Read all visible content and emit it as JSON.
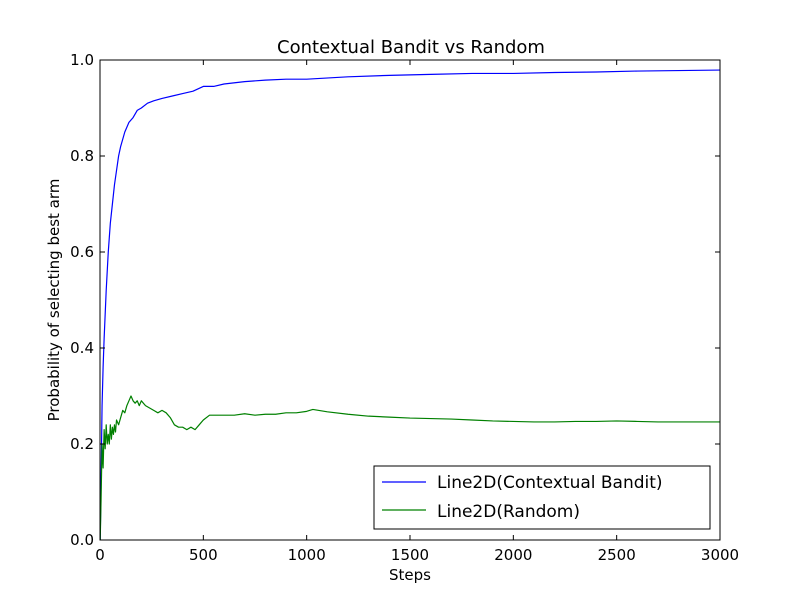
{
  "chart_data": {
    "type": "line",
    "title": "Contextual Bandit vs Random",
    "xlabel": "Steps",
    "ylabel": "Probability of selecting best arm",
    "xlim": [
      0,
      3000
    ],
    "ylim": [
      0.0,
      1.0
    ],
    "grid": false,
    "legend_position": "bottom-right",
    "x_ticks": [
      0,
      500,
      1000,
      1500,
      2000,
      2500,
      3000
    ],
    "x_tick_labels": [
      "0",
      "500",
      "1000",
      "1500",
      "2000",
      "2500",
      "3000"
    ],
    "y_ticks": [
      0.0,
      0.2,
      0.4,
      0.6,
      0.8,
      1.0
    ],
    "y_tick_labels": [
      "0.0",
      "0.2",
      "0.4",
      "0.6",
      "0.8",
      "1.0"
    ],
    "series": [
      {
        "name": "Line2D(Contextual Bandit)",
        "color": "#0000ff",
        "x": [
          1,
          5,
          10,
          15,
          20,
          25,
          30,
          35,
          40,
          45,
          50,
          60,
          70,
          80,
          90,
          100,
          120,
          140,
          160,
          180,
          200,
          230,
          260,
          300,
          350,
          400,
          450,
          500,
          550,
          600,
          700,
          800,
          900,
          1000,
          1200,
          1400,
          1600,
          1800,
          2000,
          2200,
          2400,
          2600,
          2800,
          3000
        ],
        "y": [
          0.0,
          0.12,
          0.28,
          0.36,
          0.42,
          0.47,
          0.52,
          0.56,
          0.6,
          0.63,
          0.66,
          0.7,
          0.74,
          0.77,
          0.8,
          0.82,
          0.85,
          0.87,
          0.88,
          0.895,
          0.9,
          0.91,
          0.915,
          0.92,
          0.925,
          0.93,
          0.935,
          0.945,
          0.945,
          0.95,
          0.955,
          0.958,
          0.96,
          0.96,
          0.965,
          0.968,
          0.97,
          0.972,
          0.972,
          0.974,
          0.975,
          0.977,
          0.978,
          0.979
        ]
      },
      {
        "name": "Line2D(Random)",
        "color": "#008000",
        "x": [
          1,
          5,
          10,
          15,
          20,
          25,
          30,
          35,
          40,
          45,
          50,
          55,
          60,
          65,
          70,
          75,
          80,
          90,
          100,
          110,
          120,
          130,
          140,
          150,
          160,
          170,
          180,
          190,
          200,
          220,
          240,
          260,
          280,
          300,
          320,
          340,
          360,
          380,
          400,
          420,
          440,
          460,
          480,
          500,
          530,
          560,
          600,
          650,
          700,
          750,
          800,
          850,
          900,
          950,
          1000,
          1030,
          1100,
          1200,
          1300,
          1400,
          1500,
          1600,
          1700,
          1800,
          1900,
          2000,
          2100,
          2200,
          2300,
          2400,
          2500,
          2600,
          2700,
          2800,
          2900,
          3000
        ],
        "y": [
          0.0,
          0.08,
          0.2,
          0.15,
          0.23,
          0.19,
          0.24,
          0.2,
          0.22,
          0.2,
          0.24,
          0.21,
          0.235,
          0.22,
          0.24,
          0.225,
          0.25,
          0.24,
          0.255,
          0.27,
          0.265,
          0.28,
          0.29,
          0.3,
          0.29,
          0.285,
          0.29,
          0.28,
          0.29,
          0.28,
          0.275,
          0.27,
          0.265,
          0.27,
          0.265,
          0.255,
          0.24,
          0.235,
          0.235,
          0.23,
          0.235,
          0.23,
          0.24,
          0.25,
          0.26,
          0.26,
          0.26,
          0.26,
          0.263,
          0.26,
          0.262,
          0.262,
          0.265,
          0.265,
          0.268,
          0.272,
          0.267,
          0.262,
          0.258,
          0.256,
          0.254,
          0.253,
          0.252,
          0.25,
          0.248,
          0.247,
          0.246,
          0.246,
          0.247,
          0.247,
          0.248,
          0.247,
          0.246,
          0.246,
          0.246,
          0.246
        ]
      }
    ]
  }
}
